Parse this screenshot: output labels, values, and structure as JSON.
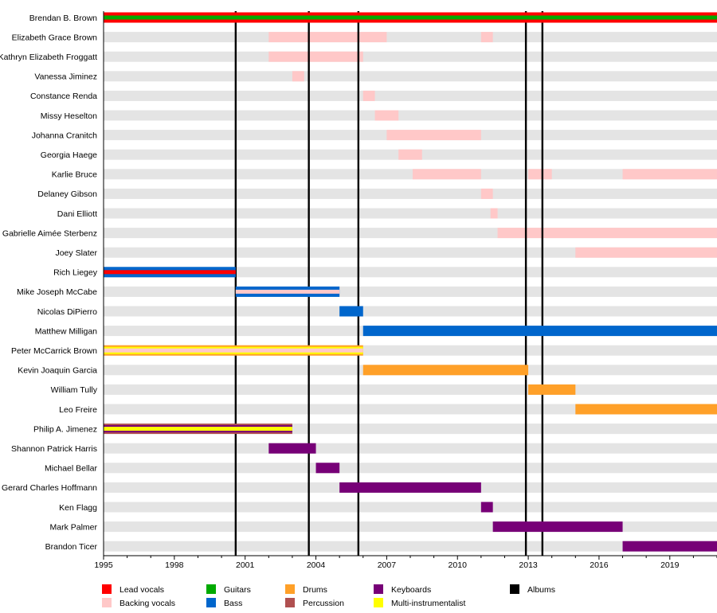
{
  "chart_data": {
    "type": "timeline",
    "title": "",
    "xlabel": "",
    "ylabel": "",
    "xlim": [
      1995,
      2021
    ],
    "x_ticks": [
      1995,
      1998,
      2001,
      2004,
      2007,
      2010,
      2013,
      2016,
      2019
    ],
    "x_tick_labels": [
      "1995",
      "1998",
      "2001",
      "2004",
      "2007",
      "2010",
      "2013",
      "2016",
      "2019"
    ],
    "minor_tick_step": 1,
    "grid": "alternating row shading",
    "colors": {
      "lead_vocals": "#ff0000",
      "backing_vocals": "#ffc8c8",
      "guitars": "#00aa00",
      "bass": "#0066cc",
      "drums": "#ffa028",
      "percussion": "#b05050",
      "keyboards": "#770077",
      "multi": "#ffff00",
      "albums": "#000000",
      "row_shade": "#e4e4e4"
    },
    "albums": [
      2000.6,
      2003.7,
      2005.8,
      2012.9,
      2013.6
    ],
    "members": [
      {
        "name": "Brendan B. Brown",
        "periods": [
          {
            "start": 1995,
            "end": 2021,
            "layers": [
              "lead_vocals",
              "guitars"
            ]
          }
        ]
      },
      {
        "name": "Elizabeth Grace Brown",
        "periods": [
          {
            "start": 2002.0,
            "end": 2007.0,
            "layers": [
              "backing_vocals"
            ]
          },
          {
            "start": 2011.0,
            "end": 2011.5,
            "layers": [
              "backing_vocals"
            ]
          }
        ]
      },
      {
        "name": "Kathryn Elizabeth Froggatt",
        "periods": [
          {
            "start": 2002.0,
            "end": 2006.0,
            "layers": [
              "backing_vocals"
            ]
          }
        ]
      },
      {
        "name": "Vanessa Jiminez",
        "periods": [
          {
            "start": 2003.0,
            "end": 2003.5,
            "layers": [
              "backing_vocals"
            ]
          }
        ]
      },
      {
        "name": "Constance Renda",
        "periods": [
          {
            "start": 2006.0,
            "end": 2006.5,
            "layers": [
              "backing_vocals"
            ]
          }
        ]
      },
      {
        "name": "Missy Heselton",
        "periods": [
          {
            "start": 2006.5,
            "end": 2007.5,
            "layers": [
              "backing_vocals"
            ]
          }
        ]
      },
      {
        "name": "Johanna Cranitch",
        "periods": [
          {
            "start": 2007.0,
            "end": 2011.0,
            "layers": [
              "backing_vocals"
            ]
          }
        ]
      },
      {
        "name": "Georgia Haege",
        "periods": [
          {
            "start": 2007.5,
            "end": 2008.5,
            "layers": [
              "backing_vocals"
            ]
          }
        ]
      },
      {
        "name": "Karlie Bruce",
        "periods": [
          {
            "start": 2008.1,
            "end": 2011.0,
            "layers": [
              "backing_vocals"
            ]
          },
          {
            "start": 2013.0,
            "end": 2014.0,
            "layers": [
              "backing_vocals"
            ]
          },
          {
            "start": 2017.0,
            "end": 2021,
            "layers": [
              "backing_vocals"
            ]
          }
        ]
      },
      {
        "name": "Delaney Gibson",
        "periods": [
          {
            "start": 2011.0,
            "end": 2011.5,
            "layers": [
              "backing_vocals"
            ]
          }
        ]
      },
      {
        "name": "Dani Elliott",
        "periods": [
          {
            "start": 2011.4,
            "end": 2011.7,
            "layers": [
              "backing_vocals"
            ]
          }
        ]
      },
      {
        "name": "Gabrielle Aimée Sterbenz",
        "periods": [
          {
            "start": 2011.7,
            "end": 2021,
            "layers": [
              "backing_vocals"
            ]
          }
        ]
      },
      {
        "name": "Joey Slater",
        "periods": [
          {
            "start": 2015.0,
            "end": 2021,
            "layers": [
              "backing_vocals"
            ]
          }
        ]
      },
      {
        "name": "Rich Liegey",
        "periods": [
          {
            "start": 1995,
            "end": 2000.6,
            "layers": [
              "bass",
              "lead_vocals"
            ]
          }
        ]
      },
      {
        "name": "Mike Joseph McCabe",
        "periods": [
          {
            "start": 2000.6,
            "end": 2005.0,
            "layers": [
              "bass",
              "backing_vocals"
            ]
          }
        ]
      },
      {
        "name": "Nicolas DiPierro",
        "periods": [
          {
            "start": 2005.0,
            "end": 2006.0,
            "layers": [
              "bass"
            ]
          }
        ]
      },
      {
        "name": "Matthew Milligan",
        "periods": [
          {
            "start": 2006.0,
            "end": 2021,
            "layers": [
              "bass"
            ]
          }
        ]
      },
      {
        "name": "Peter McCarrick Brown",
        "periods": [
          {
            "start": 1995,
            "end": 2006.0,
            "layers": [
              "drums",
              "multi",
              "backing_vocals"
            ]
          }
        ]
      },
      {
        "name": "Kevin Joaquin Garcia",
        "periods": [
          {
            "start": 2006.0,
            "end": 2013.0,
            "layers": [
              "drums"
            ]
          }
        ]
      },
      {
        "name": "William Tully",
        "periods": [
          {
            "start": 2013.0,
            "end": 2015.0,
            "layers": [
              "drums"
            ]
          }
        ]
      },
      {
        "name": "Leo Freire",
        "periods": [
          {
            "start": 2015.0,
            "end": 2021,
            "layers": [
              "drums"
            ]
          }
        ]
      },
      {
        "name": "Philip A. Jimenez",
        "periods": [
          {
            "start": 1995,
            "end": 2003.0,
            "layers": [
              "percussion",
              "keyboards",
              "multi"
            ]
          }
        ]
      },
      {
        "name": "Shannon Patrick Harris",
        "periods": [
          {
            "start": 2002.0,
            "end": 2004.0,
            "layers": [
              "keyboards"
            ]
          }
        ]
      },
      {
        "name": "Michael Bellar",
        "periods": [
          {
            "start": 2004.0,
            "end": 2005.0,
            "layers": [
              "keyboards"
            ]
          }
        ]
      },
      {
        "name": "Gerard Charles Hoffmann",
        "periods": [
          {
            "start": 2005.0,
            "end": 2011.0,
            "layers": [
              "keyboards"
            ]
          }
        ]
      },
      {
        "name": "Ken Flagg",
        "periods": [
          {
            "start": 2011.0,
            "end": 2011.5,
            "layers": [
              "keyboards"
            ]
          }
        ]
      },
      {
        "name": "Mark Palmer",
        "periods": [
          {
            "start": 2011.5,
            "end": 2017.0,
            "layers": [
              "keyboards"
            ]
          }
        ]
      },
      {
        "name": "Brandon Ticer",
        "periods": [
          {
            "start": 2017.0,
            "end": 2021,
            "layers": [
              "keyboards"
            ]
          }
        ]
      }
    ],
    "legend": {
      "placement": "bottom",
      "items": [
        {
          "key": "lead_vocals",
          "label": "Lead vocals"
        },
        {
          "key": "backing_vocals",
          "label": "Backing vocals"
        },
        {
          "key": "guitars",
          "label": "Guitars"
        },
        {
          "key": "bass",
          "label": "Bass"
        },
        {
          "key": "drums",
          "label": "Drums"
        },
        {
          "key": "percussion",
          "label": "Percussion"
        },
        {
          "key": "keyboards",
          "label": "Keyboards"
        },
        {
          "key": "multi",
          "label": "Multi-instrumentalist"
        },
        {
          "key": "albums",
          "label": "Albums"
        }
      ]
    }
  }
}
